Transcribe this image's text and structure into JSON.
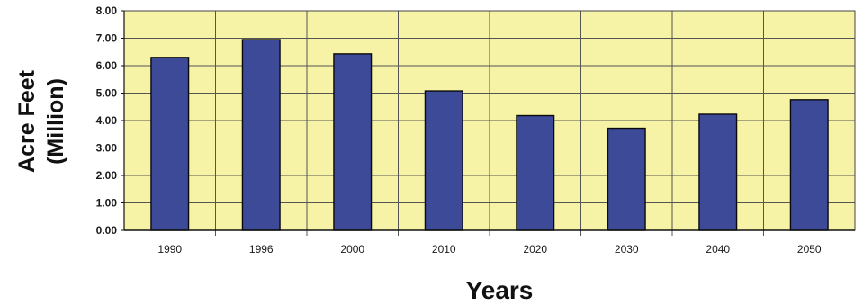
{
  "chart_data": {
    "type": "bar",
    "title": "",
    "xlabel": "Years",
    "ylabel": [
      "Acre Feet",
      "(Million)"
    ],
    "categories": [
      "1990",
      "1996",
      "2000",
      "2010",
      "2020",
      "2030",
      "2040",
      "2050"
    ],
    "values": [
      6.3,
      6.95,
      6.43,
      5.08,
      4.18,
      3.72,
      4.23,
      4.76
    ],
    "yticks": [
      "0.00",
      "1.00",
      "2.00",
      "3.00",
      "4.00",
      "5.00",
      "6.00",
      "7.00",
      "8.00"
    ],
    "ylim": [
      0,
      8
    ],
    "grid": true,
    "legend": "none",
    "colors": {
      "bar": "#3d4a98",
      "plot_background": "#f7f3a6",
      "gridline": "#555555"
    }
  }
}
